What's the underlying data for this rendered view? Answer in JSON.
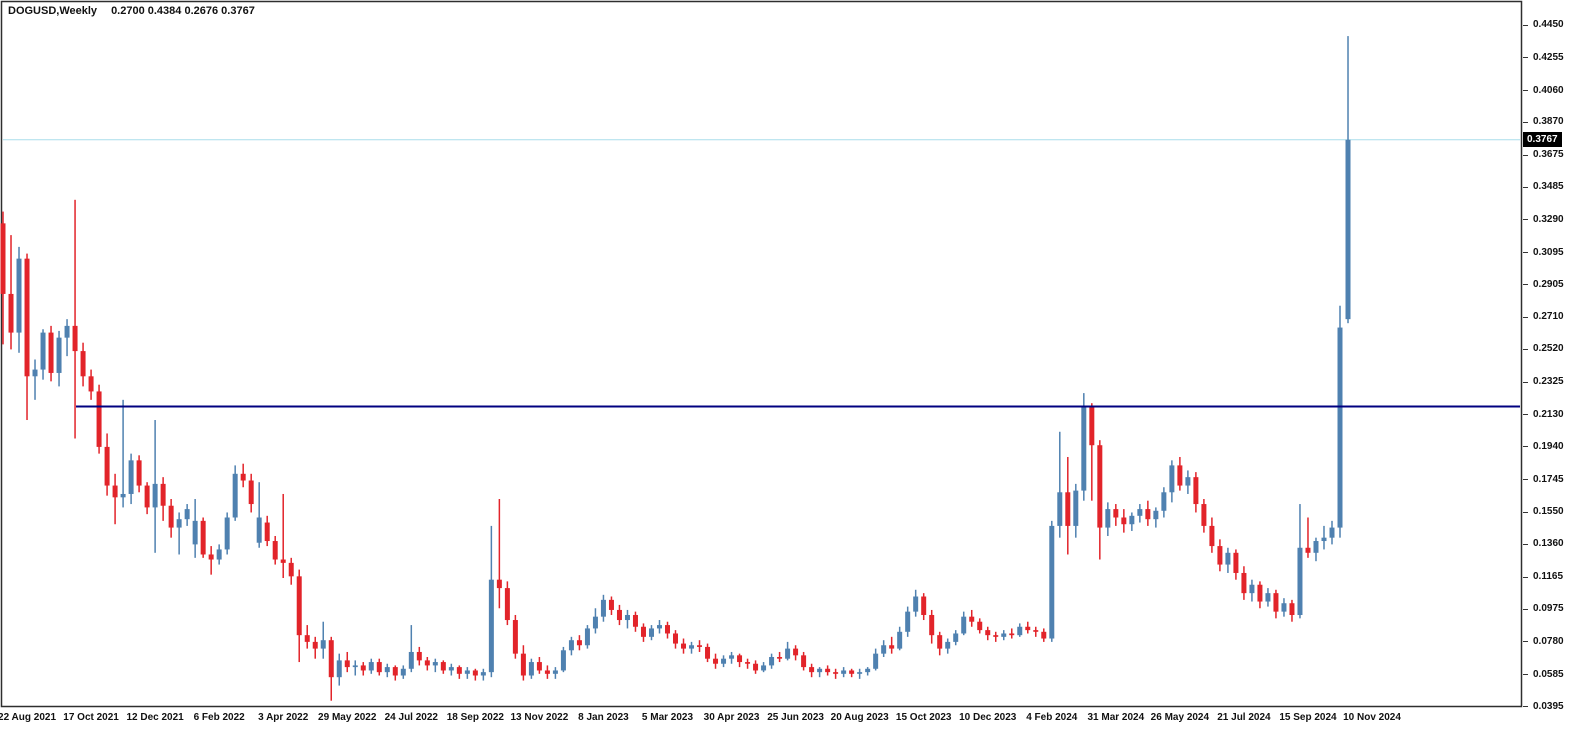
{
  "header": {
    "symbol_label": "DOGUSD,Weekly",
    "ohlc_readout": "0.2700 0.4384 0.2676 0.3767"
  },
  "chart_data": {
    "type": "candlestick",
    "title": "DOGUSD,Weekly",
    "symbol": "DOGUSD",
    "timeframe": "Weekly",
    "last_bar": {
      "open": 0.27,
      "high": 0.4384,
      "low": 0.2676,
      "close": 0.3767
    },
    "ylim": [
      0.0395,
      0.445
    ],
    "grid": false,
    "legend_position": "none",
    "price_axis": {
      "current_label": "0.3767",
      "labels": [
        "0.4450",
        "0.4255",
        "0.4060",
        "0.3870",
        "0.3675",
        "0.3485",
        "0.3290",
        "0.3095",
        "0.2905",
        "0.2710",
        "0.2520",
        "0.2325",
        "0.2130",
        "0.1940",
        "0.1745",
        "0.1550",
        "0.1360",
        "0.1165",
        "0.0975",
        "0.0780",
        "0.0585",
        "0.0395"
      ]
    },
    "time_axis": {
      "labels": [
        "22 Aug 2021",
        "17 Oct 2021",
        "12 Dec 2021",
        "6 Feb 2022",
        "3 Apr 2022",
        "29 May 2022",
        "24 Jul 2022",
        "18 Sep 2022",
        "13 Nov 2022",
        "8 Jan 2023",
        "5 Mar 2023",
        "30 Apr 2023",
        "25 Jun 2023",
        "20 Aug 2023",
        "15 Oct 2023",
        "10 Dec 2023",
        "4 Feb 2024",
        "31 Mar 2024",
        "26 May 2024",
        "21 Jul 2024",
        "15 Sep 2024",
        "10 Nov 2024"
      ]
    },
    "annotations": {
      "horizontal_level": 0.218,
      "current_price_line": 0.3767
    },
    "colors": {
      "up": "#4f81b0",
      "down": "#e2242a",
      "level_line": "#000080",
      "current_line": "#aadeeb",
      "frame": "#2e2e2e",
      "tag_bg": "#000000",
      "tag_text": "#ffffff"
    },
    "candles": [
      [
        0.327,
        0.334,
        0.255,
        0.285
      ],
      [
        0.285,
        0.32,
        0.252,
        0.262
      ],
      [
        0.262,
        0.313,
        0.25,
        0.306
      ],
      [
        0.306,
        0.309,
        0.21,
        0.236
      ],
      [
        0.236,
        0.246,
        0.222,
        0.24
      ],
      [
        0.24,
        0.264,
        0.234,
        0.262
      ],
      [
        0.262,
        0.266,
        0.233,
        0.238
      ],
      [
        0.238,
        0.263,
        0.23,
        0.259
      ],
      [
        0.259,
        0.27,
        0.248,
        0.266
      ],
      [
        0.266,
        0.341,
        0.199,
        0.251
      ],
      [
        0.251,
        0.256,
        0.23,
        0.236
      ],
      [
        0.236,
        0.24,
        0.222,
        0.227
      ],
      [
        0.227,
        0.231,
        0.19,
        0.194
      ],
      [
        0.194,
        0.202,
        0.165,
        0.171
      ],
      [
        0.171,
        0.178,
        0.148,
        0.164
      ],
      [
        0.164,
        0.222,
        0.158,
        0.166
      ],
      [
        0.166,
        0.19,
        0.16,
        0.186
      ],
      [
        0.186,
        0.189,
        0.167,
        0.171
      ],
      [
        0.171,
        0.173,
        0.154,
        0.158
      ],
      [
        0.158,
        0.21,
        0.131,
        0.172
      ],
      [
        0.172,
        0.176,
        0.15,
        0.159
      ],
      [
        0.159,
        0.163,
        0.14,
        0.146
      ],
      [
        0.146,
        0.155,
        0.13,
        0.151
      ],
      [
        0.151,
        0.16,
        0.147,
        0.157
      ],
      [
        0.136,
        0.163,
        0.128,
        0.15
      ],
      [
        0.15,
        0.152,
        0.128,
        0.13
      ],
      [
        0.13,
        0.135,
        0.118,
        0.127
      ],
      [
        0.127,
        0.136,
        0.124,
        0.133
      ],
      [
        0.133,
        0.155,
        0.13,
        0.152
      ],
      [
        0.152,
        0.183,
        0.15,
        0.178
      ],
      [
        0.178,
        0.184,
        0.17,
        0.174
      ],
      [
        0.174,
        0.178,
        0.155,
        0.16
      ],
      [
        0.137,
        0.173,
        0.134,
        0.152
      ],
      [
        0.149,
        0.153,
        0.135,
        0.138
      ],
      [
        0.138,
        0.141,
        0.124,
        0.127
      ],
      [
        0.127,
        0.166,
        0.116,
        0.125
      ],
      [
        0.125,
        0.128,
        0.112,
        0.117
      ],
      [
        0.117,
        0.121,
        0.066,
        0.082
      ],
      [
        0.082,
        0.088,
        0.074,
        0.078
      ],
      [
        0.078,
        0.081,
        0.068,
        0.074
      ],
      [
        0.074,
        0.09,
        0.068,
        0.079
      ],
      [
        0.079,
        0.081,
        0.043,
        0.057
      ],
      [
        0.057,
        0.071,
        0.052,
        0.067
      ],
      [
        0.067,
        0.072,
        0.06,
        0.063
      ],
      [
        0.063,
        0.067,
        0.058,
        0.064
      ],
      [
        0.064,
        0.066,
        0.058,
        0.061
      ],
      [
        0.061,
        0.068,
        0.059,
        0.066
      ],
      [
        0.066,
        0.068,
        0.058,
        0.06
      ],
      [
        0.06,
        0.065,
        0.057,
        0.063
      ],
      [
        0.063,
        0.064,
        0.055,
        0.058
      ],
      [
        0.058,
        0.064,
        0.056,
        0.062
      ],
      [
        0.062,
        0.088,
        0.06,
        0.072
      ],
      [
        0.072,
        0.075,
        0.064,
        0.067
      ],
      [
        0.067,
        0.069,
        0.061,
        0.064
      ],
      [
        0.064,
        0.068,
        0.06,
        0.066
      ],
      [
        0.066,
        0.067,
        0.059,
        0.061
      ],
      [
        0.061,
        0.065,
        0.058,
        0.063
      ],
      [
        0.063,
        0.064,
        0.056,
        0.059
      ],
      [
        0.059,
        0.063,
        0.056,
        0.061
      ],
      [
        0.061,
        0.062,
        0.055,
        0.058
      ],
      [
        0.058,
        0.062,
        0.055,
        0.06
      ],
      [
        0.06,
        0.147,
        0.057,
        0.115
      ],
      [
        0.115,
        0.163,
        0.098,
        0.11
      ],
      [
        0.11,
        0.114,
        0.088,
        0.091
      ],
      [
        0.091,
        0.094,
        0.068,
        0.071
      ],
      [
        0.071,
        0.076,
        0.055,
        0.058
      ],
      [
        0.058,
        0.068,
        0.056,
        0.066
      ],
      [
        0.066,
        0.069,
        0.059,
        0.061
      ],
      [
        0.061,
        0.064,
        0.056,
        0.059
      ],
      [
        0.059,
        0.063,
        0.056,
        0.061
      ],
      [
        0.061,
        0.075,
        0.06,
        0.073
      ],
      [
        0.073,
        0.081,
        0.07,
        0.079
      ],
      [
        0.079,
        0.082,
        0.073,
        0.076
      ],
      [
        0.076,
        0.088,
        0.074,
        0.086
      ],
      [
        0.086,
        0.098,
        0.083,
        0.093
      ],
      [
        0.093,
        0.106,
        0.09,
        0.103
      ],
      [
        0.103,
        0.105,
        0.094,
        0.097
      ],
      [
        0.097,
        0.1,
        0.088,
        0.091
      ],
      [
        0.091,
        0.097,
        0.086,
        0.094
      ],
      [
        0.094,
        0.096,
        0.084,
        0.087
      ],
      [
        0.087,
        0.089,
        0.078,
        0.081
      ],
      [
        0.081,
        0.088,
        0.079,
        0.086
      ],
      [
        0.086,
        0.091,
        0.083,
        0.088
      ],
      [
        0.088,
        0.09,
        0.08,
        0.083
      ],
      [
        0.083,
        0.085,
        0.074,
        0.077
      ],
      [
        0.077,
        0.08,
        0.071,
        0.074
      ],
      [
        0.074,
        0.078,
        0.071,
        0.076
      ],
      [
        0.076,
        0.079,
        0.072,
        0.075
      ],
      [
        0.075,
        0.077,
        0.066,
        0.068
      ],
      [
        0.068,
        0.071,
        0.062,
        0.065
      ],
      [
        0.065,
        0.07,
        0.063,
        0.068
      ],
      [
        0.068,
        0.072,
        0.065,
        0.07
      ],
      [
        0.07,
        0.071,
        0.063,
        0.066
      ],
      [
        0.066,
        0.068,
        0.062,
        0.065
      ],
      [
        0.065,
        0.067,
        0.059,
        0.061
      ],
      [
        0.061,
        0.066,
        0.06,
        0.064
      ],
      [
        0.064,
        0.071,
        0.062,
        0.069
      ],
      [
        0.069,
        0.072,
        0.066,
        0.068
      ],
      [
        0.068,
        0.078,
        0.067,
        0.074
      ],
      [
        0.074,
        0.076,
        0.067,
        0.07
      ],
      [
        0.07,
        0.072,
        0.061,
        0.063
      ],
      [
        0.063,
        0.065,
        0.057,
        0.06
      ],
      [
        0.06,
        0.063,
        0.057,
        0.062
      ],
      [
        0.062,
        0.064,
        0.058,
        0.06
      ],
      [
        0.06,
        0.062,
        0.056,
        0.059
      ],
      [
        0.059,
        0.063,
        0.057,
        0.061
      ],
      [
        0.061,
        0.062,
        0.057,
        0.059
      ],
      [
        0.059,
        0.062,
        0.056,
        0.06
      ],
      [
        0.06,
        0.063,
        0.058,
        0.062
      ],
      [
        0.062,
        0.074,
        0.061,
        0.071
      ],
      [
        0.071,
        0.079,
        0.069,
        0.076
      ],
      [
        0.076,
        0.081,
        0.071,
        0.074
      ],
      [
        0.074,
        0.087,
        0.073,
        0.084
      ],
      [
        0.084,
        0.099,
        0.081,
        0.096
      ],
      [
        0.096,
        0.109,
        0.093,
        0.105
      ],
      [
        0.105,
        0.107,
        0.091,
        0.094
      ],
      [
        0.094,
        0.097,
        0.077,
        0.082
      ],
      [
        0.082,
        0.084,
        0.07,
        0.074
      ],
      [
        0.074,
        0.08,
        0.071,
        0.078
      ],
      [
        0.078,
        0.085,
        0.076,
        0.083
      ],
      [
        0.083,
        0.096,
        0.082,
        0.093
      ],
      [
        0.093,
        0.097,
        0.087,
        0.09
      ],
      [
        0.09,
        0.092,
        0.083,
        0.085
      ],
      [
        0.085,
        0.087,
        0.079,
        0.082
      ],
      [
        0.082,
        0.084,
        0.078,
        0.081
      ],
      [
        0.081,
        0.085,
        0.079,
        0.083
      ],
      [
        0.083,
        0.086,
        0.08,
        0.082
      ],
      [
        0.082,
        0.089,
        0.081,
        0.087
      ],
      [
        0.087,
        0.09,
        0.083,
        0.085
      ],
      [
        0.085,
        0.087,
        0.081,
        0.084
      ],
      [
        0.084,
        0.086,
        0.078,
        0.08
      ],
      [
        0.08,
        0.15,
        0.078,
        0.147
      ],
      [
        0.147,
        0.203,
        0.14,
        0.167
      ],
      [
        0.167,
        0.188,
        0.13,
        0.147
      ],
      [
        0.147,
        0.172,
        0.14,
        0.168
      ],
      [
        0.168,
        0.226,
        0.162,
        0.2185
      ],
      [
        0.2185,
        0.22,
        0.162,
        0.195
      ],
      [
        0.195,
        0.198,
        0.127,
        0.146
      ],
      [
        0.146,
        0.161,
        0.141,
        0.157
      ],
      [
        0.157,
        0.16,
        0.147,
        0.152
      ],
      [
        0.152,
        0.157,
        0.143,
        0.148
      ],
      [
        0.148,
        0.155,
        0.144,
        0.153
      ],
      [
        0.153,
        0.16,
        0.149,
        0.157
      ],
      [
        0.157,
        0.162,
        0.147,
        0.151
      ],
      [
        0.151,
        0.158,
        0.146,
        0.156
      ],
      [
        0.156,
        0.17,
        0.152,
        0.167
      ],
      [
        0.167,
        0.186,
        0.161,
        0.183
      ],
      [
        0.183,
        0.188,
        0.168,
        0.171
      ],
      [
        0.171,
        0.18,
        0.166,
        0.176
      ],
      [
        0.176,
        0.179,
        0.155,
        0.16
      ],
      [
        0.16,
        0.163,
        0.143,
        0.147
      ],
      [
        0.147,
        0.152,
        0.131,
        0.135
      ],
      [
        0.135,
        0.139,
        0.12,
        0.124
      ],
      [
        0.124,
        0.134,
        0.119,
        0.131
      ],
      [
        0.131,
        0.133,
        0.115,
        0.119
      ],
      [
        0.119,
        0.123,
        0.103,
        0.107
      ],
      [
        0.107,
        0.115,
        0.102,
        0.112
      ],
      [
        0.112,
        0.114,
        0.098,
        0.102
      ],
      [
        0.102,
        0.11,
        0.099,
        0.107
      ],
      [
        0.107,
        0.109,
        0.092,
        0.096
      ],
      [
        0.096,
        0.104,
        0.093,
        0.101
      ],
      [
        0.101,
        0.103,
        0.09,
        0.094
      ],
      [
        0.094,
        0.16,
        0.092,
        0.134
      ],
      [
        0.134,
        0.152,
        0.128,
        0.131
      ],
      [
        0.131,
        0.14,
        0.126,
        0.138
      ],
      [
        0.138,
        0.147,
        0.133,
        0.14
      ],
      [
        0.14,
        0.15,
        0.136,
        0.146
      ],
      [
        0.146,
        0.278,
        0.14,
        0.265
      ],
      [
        0.27,
        0.4384,
        0.2676,
        0.3767
      ]
    ]
  }
}
